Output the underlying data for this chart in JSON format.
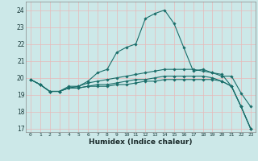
{
  "title": "",
  "xlabel": "Humidex (Indice chaleur)",
  "bg_color": "#cce8e8",
  "plot_bg_color": "#cce8e8",
  "grid_color_major": "#e8b8b8",
  "grid_color_minor": "#e8d0d0",
  "line_color": "#1a6e6a",
  "xlim": [
    -0.5,
    23.5
  ],
  "ylim": [
    16.8,
    24.5
  ],
  "yticks": [
    17,
    18,
    19,
    20,
    21,
    22,
    23,
    24
  ],
  "xticks": [
    0,
    1,
    2,
    3,
    4,
    5,
    6,
    7,
    8,
    9,
    10,
    11,
    12,
    13,
    14,
    15,
    16,
    17,
    18,
    19,
    20,
    21,
    22,
    23
  ],
  "series": [
    [
      19.9,
      19.6,
      19.2,
      19.2,
      19.5,
      19.5,
      19.8,
      20.3,
      20.5,
      21.5,
      21.8,
      22.0,
      23.5,
      23.8,
      24.0,
      23.2,
      21.8,
      20.4,
      20.5,
      20.3,
      20.1,
      20.1,
      19.1,
      18.3
    ],
    [
      19.9,
      19.6,
      19.2,
      19.2,
      19.4,
      19.5,
      19.7,
      19.8,
      19.9,
      20.0,
      20.1,
      20.2,
      20.3,
      20.4,
      20.5,
      20.5,
      20.5,
      20.5,
      20.4,
      20.3,
      20.2,
      19.5,
      18.3,
      17.0
    ],
    [
      19.9,
      19.6,
      19.2,
      19.2,
      19.4,
      19.4,
      19.5,
      19.6,
      19.6,
      19.7,
      19.8,
      19.9,
      19.9,
      20.0,
      20.1,
      20.1,
      20.1,
      20.1,
      20.1,
      20.0,
      19.8,
      19.5,
      18.3,
      17.0
    ],
    [
      19.9,
      19.6,
      19.2,
      19.2,
      19.4,
      19.4,
      19.5,
      19.5,
      19.5,
      19.6,
      19.6,
      19.7,
      19.8,
      19.8,
      19.9,
      19.9,
      19.9,
      19.9,
      19.9,
      19.9,
      19.8,
      19.5,
      18.3,
      17.0
    ]
  ]
}
